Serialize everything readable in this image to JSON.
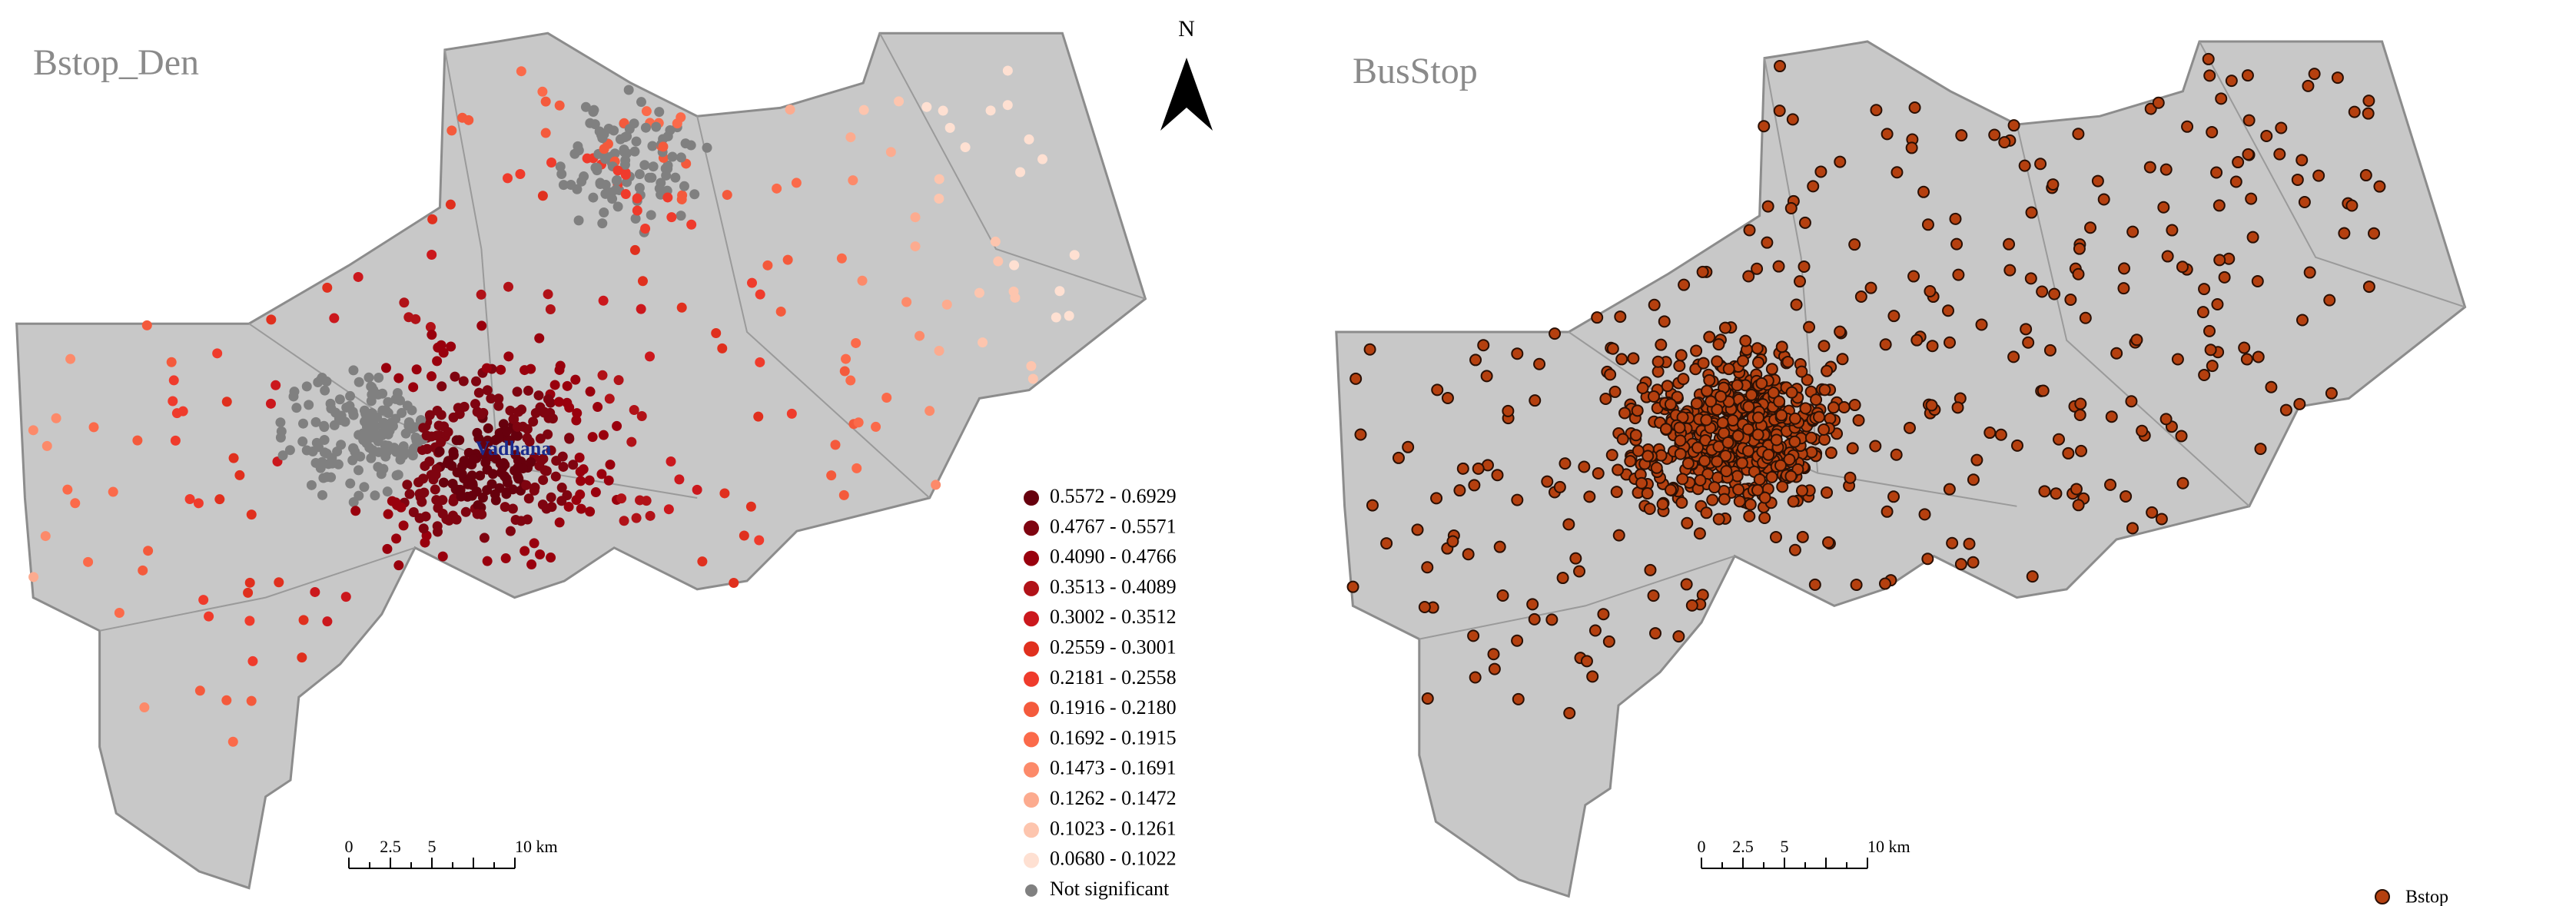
{
  "left_map": {
    "title": "Bstop_Den",
    "place_label": "Vadhana",
    "north": "N",
    "legend": [
      {
        "label": "0.5572 - 0.6929",
        "color": "#67000d"
      },
      {
        "label": "0.4767 - 0.5571",
        "color": "#7f0410"
      },
      {
        "label": "0.4090 - 0.4766",
        "color": "#99000d"
      },
      {
        "label": "0.3513 - 0.4089",
        "color": "#b11218"
      },
      {
        "label": "0.3002 - 0.3512",
        "color": "#cb181d"
      },
      {
        "label": "0.2559 - 0.3001",
        "color": "#e0301e"
      },
      {
        "label": "0.2181 - 0.2558",
        "color": "#ef3b2c"
      },
      {
        "label": "0.1916 - 0.2180",
        "color": "#f45a3c"
      },
      {
        "label": "0.1692 - 0.1915",
        "color": "#fb6a4a"
      },
      {
        "label": "0.1473 - 0.1691",
        "color": "#fc8a6a"
      },
      {
        "label": "0.1262 - 0.1472",
        "color": "#fcab8f"
      },
      {
        "label": "0.1023 - 0.1261",
        "color": "#fdc5ae"
      },
      {
        "label": "0.0680 - 0.1022",
        "color": "#fee0d2"
      },
      {
        "label": "Not significant",
        "color": "#808080"
      }
    ],
    "scale_bar": [
      "0",
      "2.5",
      "5",
      "10 km"
    ]
  },
  "right_map": {
    "title": "BusStop",
    "scale_bar": [
      "0",
      "2.5",
      "5",
      "10 km"
    ],
    "legend": {
      "label": "Bstop",
      "color": "#b5400f"
    }
  }
}
